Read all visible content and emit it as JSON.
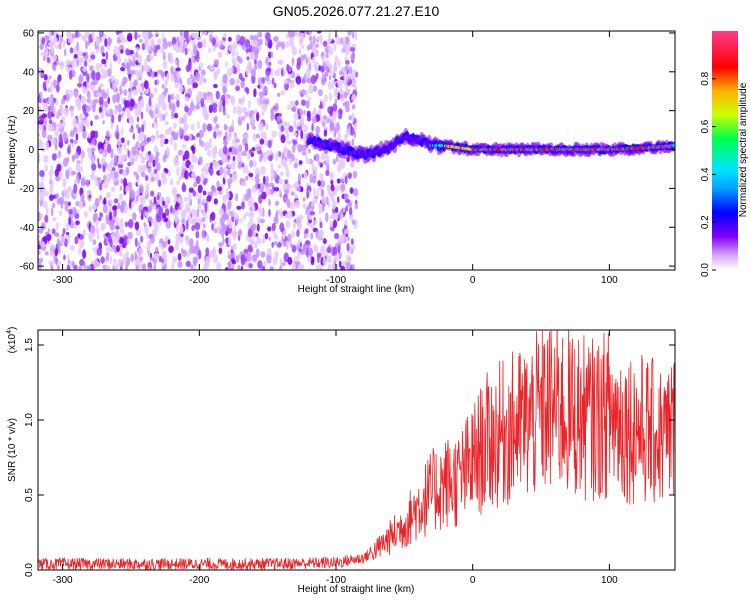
{
  "title": "GN05.2026.077.21.27.E10",
  "chart_data": [
    {
      "type": "heatmap",
      "xlabel": "Height of straight line (km)",
      "ylabel": "Frequency (Hz)",
      "xlim": [
        -318,
        148
      ],
      "ylim": [
        -62,
        61
      ],
      "xticks": [
        -300,
        -200,
        -100,
        0,
        100
      ],
      "yticks": [
        60,
        40,
        20,
        0,
        -20,
        -40,
        -60
      ],
      "colorbar": {
        "label": "Normalized spectral amplitude",
        "range": [
          0.0,
          1.0
        ],
        "ticks": [
          0.0,
          0.2,
          0.4,
          0.6,
          0.8
        ],
        "colormap": [
          "#ffffff",
          "#d9a8ff",
          "#8000ff",
          "#0000ff",
          "#00e5ff",
          "#00ff4c",
          "#ccff00",
          "#ffb000",
          "#ff0000",
          "#ff3c8c"
        ]
      },
      "regions": [
        {
          "name": "broadband noise",
          "x_range": [
            -318,
            -85
          ],
          "f_range": [
            -62,
            61
          ],
          "amplitude": [
            0.0,
            0.2
          ]
        },
        {
          "name": "narrowband signal",
          "x_range": [
            -120,
            148
          ],
          "center_freq": [
            [
              -120,
              5
            ],
            [
              -100,
              1
            ],
            [
              -80,
              -3
            ],
            [
              -60,
              1
            ],
            [
              -50,
              7
            ],
            [
              -40,
              5
            ],
            [
              -30,
              2
            ],
            [
              -20,
              2
            ],
            [
              0,
              0
            ],
            [
              50,
              0
            ],
            [
              100,
              0
            ],
            [
              130,
              1
            ],
            [
              148,
              2
            ]
          ],
          "amplitude": [
            0.3,
            1.0
          ]
        }
      ],
      "grid": false
    },
    {
      "type": "line",
      "xlabel": "Height of straight line (km)",
      "ylabel": "SNR (10 * v/v)",
      "y_multiplier": "(x10^4)",
      "xlim": [
        -318,
        148
      ],
      "ylim": [
        0.0,
        1.6
      ],
      "xticks": [
        -300,
        -200,
        -100,
        0,
        100
      ],
      "yticks": [
        0.0,
        0.5,
        1.0,
        1.5
      ],
      "color": "#e8262a",
      "series": [
        {
          "x": [
            -318,
            -250,
            -200,
            -150,
            -100,
            -80,
            -70,
            -60,
            -50,
            -40,
            -30,
            -20,
            -10,
            0,
            10,
            20,
            30,
            40,
            50,
            60,
            70,
            80,
            90,
            100,
            110,
            120,
            130,
            140,
            148
          ],
          "y": [
            0.04,
            0.04,
            0.04,
            0.04,
            0.05,
            0.08,
            0.14,
            0.22,
            0.3,
            0.42,
            0.52,
            0.58,
            0.6,
            0.72,
            0.85,
            0.9,
            0.95,
            0.98,
            1.05,
            1.1,
            1.05,
            1.02,
            1.0,
            1.05,
            0.98,
            0.95,
            0.92,
            0.88,
            0.95
          ]
        }
      ],
      "grid": false
    }
  ]
}
